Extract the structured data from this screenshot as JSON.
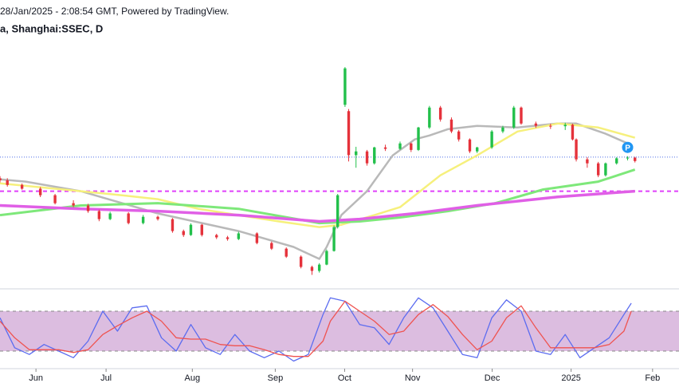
{
  "header": {
    "line1": "28/Jan/2025 - 2:08:54 GMT, Powered by TradingView.",
    "line2": "a, Shanghai:SSEC, D"
  },
  "chart_data": [
    {
      "type": "candlestick",
      "x": [
        0,
        2,
        6,
        11,
        15,
        20,
        24,
        27,
        30,
        35,
        39,
        43,
        47,
        50,
        52,
        55,
        59,
        62,
        65,
        70,
        74,
        78,
        82,
        85,
        87,
        89,
        91,
        92,
        94,
        95,
        97,
        100,
        102,
        105,
        109,
        112,
        114,
        117,
        120,
        123,
        125,
        128,
        130,
        134,
        137,
        140,
        142,
        146,
        150,
        154,
        156,
        157,
        160,
        163,
        165,
        168,
        171,
        173
      ],
      "open": [
        3150,
        3140,
        3118,
        3100,
        3069,
        3031,
        3020,
        2993,
        2955,
        2982,
        2936,
        2966,
        2955,
        2898,
        2879,
        2928,
        2879,
        2868,
        2860,
        2887,
        2841,
        2814,
        2776,
        2727,
        2708,
        2738,
        2803,
        2917,
        3500,
        3470,
        3260,
        3278,
        3221,
        3297,
        3290,
        3316,
        3285,
        3392,
        3487,
        3430,
        3373,
        3335,
        3278,
        3297,
        3373,
        3392,
        3487,
        3411,
        3400,
        3398,
        3405,
        3335,
        3240,
        3221,
        3164,
        3221,
        3245,
        3248
      ],
      "high": [
        3160,
        3150,
        3125,
        3108,
        3075,
        3045,
        3028,
        3000,
        2990,
        2988,
        2975,
        2972,
        2960,
        2905,
        2935,
        2932,
        2885,
        2875,
        2895,
        2892,
        2848,
        2820,
        2782,
        2733,
        2745,
        2810,
        2925,
        3075,
        3680,
        3480,
        3300,
        3285,
        3300,
        3310,
        3325,
        3320,
        3395,
        3495,
        3495,
        3440,
        3380,
        3340,
        3300,
        3380,
        3400,
        3495,
        3492,
        3420,
        3410,
        3415,
        3410,
        3340,
        3250,
        3228,
        3225,
        3250,
        3255,
        3252
      ],
      "low": [
        3130,
        3110,
        3095,
        3060,
        3025,
        3012,
        2985,
        2945,
        2950,
        2930,
        2930,
        2948,
        2890,
        2870,
        2875,
        2872,
        2860,
        2852,
        2855,
        2835,
        2808,
        2770,
        2720,
        2689,
        2700,
        2735,
        2800,
        2910,
        3490,
        3230,
        3200,
        3210,
        3215,
        3280,
        3285,
        3275,
        3280,
        3385,
        3420,
        3365,
        3325,
        3270,
        3270,
        3290,
        3365,
        3385,
        3405,
        3390,
        3385,
        3380,
        3330,
        3230,
        3200,
        3155,
        3158,
        3215,
        3235,
        3225
      ],
      "close": [
        3140,
        3118,
        3100,
        3069,
        3031,
        3020,
        2993,
        2955,
        2982,
        2936,
        2966,
        2955,
        2898,
        2879,
        2928,
        2879,
        2868,
        2860,
        2887,
        2841,
        2814,
        2776,
        2727,
        2708,
        2738,
        2803,
        2917,
        3069,
        3674,
        3260,
        3278,
        3221,
        3297,
        3290,
        3316,
        3285,
        3392,
        3487,
        3430,
        3373,
        3335,
        3278,
        3297,
        3373,
        3392,
        3487,
        3411,
        3400,
        3398,
        3405,
        3335,
        3240,
        3221,
        3164,
        3221,
        3245,
        3248,
        3232
      ],
      "up_color": "#22c04b",
      "down_color": "#e5323b",
      "lines": [
        {
          "color": "#b9b9b9",
          "width": 2.5,
          "x": [
            0,
            7,
            22,
            43,
            65,
            80,
            87,
            89,
            93,
            100,
            107,
            113,
            117,
            122,
            130,
            141,
            152,
            157,
            165,
            171
          ],
          "values": [
            3145,
            3134,
            3088,
            2982,
            2898,
            2822,
            2765,
            2822,
            2974,
            3088,
            3259,
            3335,
            3354,
            3384,
            3400,
            3392,
            3411,
            3411,
            3362,
            3316
          ]
        },
        {
          "color": "#f6f07c",
          "width": 2.5,
          "x": [
            0,
            22,
            33,
            43,
            54,
            65,
            76,
            87,
            93,
            102,
            109,
            120,
            130,
            141,
            152,
            163,
            173
          ],
          "values": [
            3126,
            3088,
            3069,
            3050,
            3004,
            2974,
            2944,
            2917,
            2928,
            2974,
            3012,
            3164,
            3259,
            3373,
            3411,
            3392,
            3343
          ]
        },
        {
          "color": "#7ee87a",
          "width": 3,
          "x": [
            0,
            22,
            43,
            65,
            87,
            98,
            109,
            122,
            135,
            148,
            163,
            173
          ],
          "values": [
            2974,
            3020,
            3031,
            3004,
            2936,
            2944,
            2963,
            2993,
            3031,
            3096,
            3134,
            3191
          ]
        },
        {
          "color": "#e05fe6",
          "width": 3.5,
          "x": [
            0,
            22,
            43,
            65,
            87,
            98,
            113,
            130,
            152,
            173
          ],
          "values": [
            3020,
            3004,
            2993,
            2974,
            2944,
            2955,
            2982,
            3020,
            3061,
            3088
          ]
        }
      ],
      "hlines": [
        {
          "value": 3251,
          "color": "#4f6fe8",
          "style": "dotted"
        },
        {
          "value": 3088,
          "color": "#e040fb",
          "style": "dashed"
        }
      ],
      "marker": {
        "x": 171,
        "y": 3297,
        "label": "P",
        "color": "#2196f3"
      },
      "xlim": [
        0,
        185
      ],
      "ylim": [
        2630,
        4000
      ]
    },
    {
      "type": "line",
      "x": [
        0,
        4,
        8,
        12,
        16,
        20,
        24,
        28,
        32,
        36,
        40,
        44,
        48,
        52,
        56,
        60,
        64,
        68,
        72,
        76,
        80,
        84,
        88,
        90,
        94,
        98,
        102,
        106,
        110,
        114,
        118,
        122,
        126,
        130,
        134,
        138,
        142,
        146,
        150,
        154,
        158,
        162,
        166,
        170,
        172
      ],
      "series": [
        {
          "color": "#5b6cf0",
          "values": [
            70,
            25,
            15,
            30,
            20,
            10,
            35,
            80,
            50,
            85,
            88,
            40,
            20,
            60,
            25,
            15,
            45,
            20,
            10,
            20,
            5,
            15,
            75,
            100,
            95,
            60,
            55,
            30,
            70,
            100,
            85,
            50,
            15,
            10,
            70,
            97,
            80,
            20,
            15,
            45,
            10,
            25,
            40,
            75,
            92
          ]
        },
        {
          "color": "#ef5350",
          "values": [
            65,
            40,
            22,
            22,
            22,
            18,
            22,
            45,
            58,
            70,
            80,
            65,
            40,
            38,
            38,
            30,
            28,
            28,
            22,
            15,
            12,
            12,
            35,
            65,
            95,
            80,
            65,
            45,
            50,
            75,
            90,
            72,
            45,
            22,
            35,
            70,
            88,
            55,
            25,
            25,
            25,
            25,
            30,
            50,
            80
          ]
        }
      ],
      "band": [
        20,
        80
      ],
      "band_color": "#dcbde0",
      "xlim": [
        0,
        185
      ],
      "ylim": [
        -4,
        110
      ],
      "xticks": [
        {
          "value": 9.8,
          "label": "Jun"
        },
        {
          "value": 28.9,
          "label": "Jul"
        },
        {
          "value": 52.4,
          "label": "Aug"
        },
        {
          "value": 75,
          "label": "Sep"
        },
        {
          "value": 93.9,
          "label": "Oct"
        },
        {
          "value": 112.4,
          "label": "Nov"
        },
        {
          "value": 134.1,
          "label": "Dec"
        },
        {
          "value": 155.6,
          "label": "2025"
        },
        {
          "value": 177.8,
          "label": "Feb"
        }
      ]
    }
  ]
}
